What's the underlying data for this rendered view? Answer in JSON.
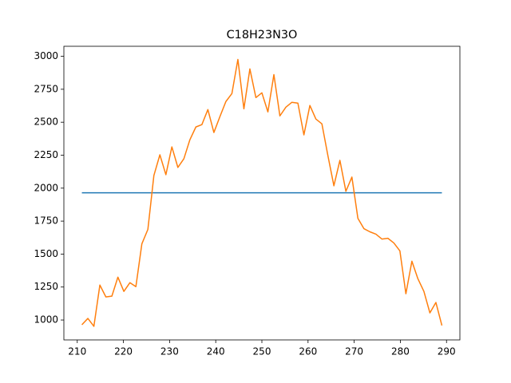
{
  "chart_data": {
    "type": "line",
    "title": "C18H23N3O",
    "xlim": [
      207.1,
      292.9
    ],
    "ylim": [
      849,
      3076
    ],
    "xticks": [
      210,
      220,
      230,
      240,
      250,
      260,
      270,
      280,
      290
    ],
    "yticks": [
      1000,
      1250,
      1500,
      1750,
      2000,
      2250,
      2500,
      2750,
      3000
    ],
    "series": [
      {
        "color": "#1f77b4",
        "x": [
          211,
          289
        ],
        "values": [
          1965,
          1965
        ]
      },
      {
        "color": "#ff7f0e",
        "x": [
          211,
          212.3,
          213.6,
          214.9,
          216.2,
          217.5,
          218.8,
          220.1,
          221.4,
          222.7,
          224,
          225.3,
          226.6,
          227.9,
          229.2,
          230.5,
          231.8,
          233.1,
          234.4,
          235.7,
          237,
          238.3,
          239.6,
          240.9,
          242.2,
          243.5,
          244.8,
          246.1,
          247.4,
          248.7,
          250,
          251.3,
          252.6,
          253.9,
          255.2,
          256.5,
          257.8,
          259.1,
          260.4,
          261.7,
          263,
          264.3,
          265.6,
          266.9,
          268.2,
          269.5,
          270.8,
          272.1,
          273.4,
          274.7,
          276,
          277.3,
          278.6,
          279.9,
          281.2,
          282.5,
          283.8,
          285.1,
          286.4,
          287.7,
          289
        ],
        "values": [
          964,
          1012,
          952,
          1265,
          1175,
          1181,
          1325,
          1217,
          1283,
          1253,
          1578,
          1687,
          2096,
          2253,
          2102,
          2313,
          2157,
          2223,
          2367,
          2464,
          2482,
          2596,
          2422,
          2542,
          2657,
          2717,
          2976,
          2602,
          2904,
          2687,
          2723,
          2578,
          2861,
          2548,
          2614,
          2651,
          2645,
          2404,
          2627,
          2524,
          2488,
          2247,
          2018,
          2211,
          1976,
          2084,
          1771,
          1693,
          1669,
          1651,
          1614,
          1620,
          1584,
          1524,
          1199,
          1446,
          1313,
          1217,
          1054,
          1133,
          958
        ]
      }
    ]
  }
}
